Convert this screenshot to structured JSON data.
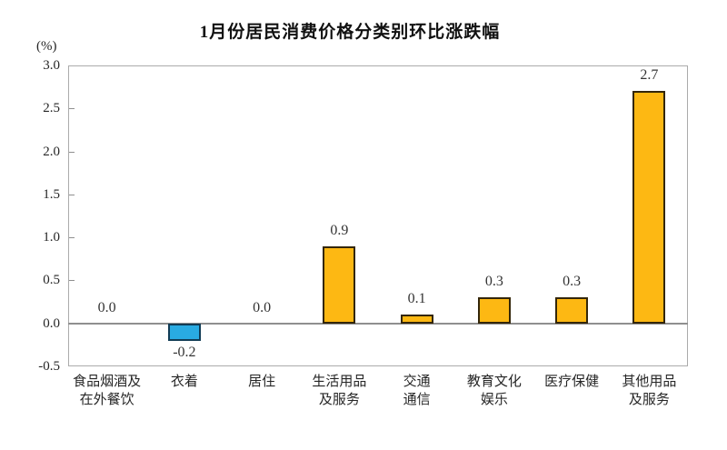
{
  "chart_data": {
    "type": "bar",
    "title": "1月份居民消费价格分类别环比涨跌幅",
    "ylabel": "(%)",
    "xlabel": "",
    "categories": [
      "食品烟酒及在外餐饮",
      "衣着",
      "居住",
      "生活用品及服务",
      "交通通信",
      "教育文化娱乐",
      "医疗保健",
      "其他用品及服务"
    ],
    "category_lines": [
      [
        "食品烟酒及",
        "在外餐饮"
      ],
      [
        "衣着"
      ],
      [
        "居住"
      ],
      [
        "生活用品",
        "及服务"
      ],
      [
        "交通",
        "通信"
      ],
      [
        "教育文化",
        "娱乐"
      ],
      [
        "医疗保健"
      ],
      [
        "其他用品",
        "及服务"
      ]
    ],
    "values": [
      0.0,
      -0.2,
      0.0,
      0.9,
      0.1,
      0.3,
      0.3,
      2.7
    ],
    "value_labels": [
      "0.0",
      "-0.2",
      "0.0",
      "0.9",
      "0.1",
      "0.3",
      "0.3",
      "2.7"
    ],
    "ylim": [
      -0.5,
      3.0
    ],
    "ytick_step": 0.5,
    "ytick_labels": [
      "3.0",
      "2.5",
      "2.0",
      "1.5",
      "1.0",
      "0.5",
      "0.0",
      "-0.5"
    ],
    "grid": false,
    "legend": false,
    "colors": {
      "positive_bar_fill": "#FDB813",
      "positive_bar_border": "#33260A",
      "negative_bar_fill": "#29ABE2",
      "negative_bar_border": "#123C55",
      "plot_border": "#ABABAB",
      "zero_line": "#8F8F8F",
      "tick": "#8F8F8F",
      "text": "#262626"
    }
  }
}
